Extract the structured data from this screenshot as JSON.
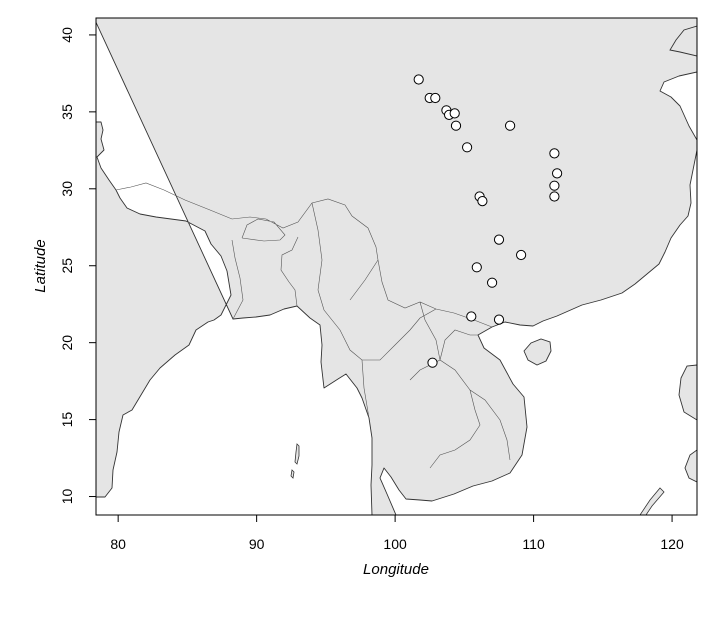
{
  "chart_data": {
    "type": "scatter",
    "map_region": "South China and mainland Southeast Asia",
    "xlabel": "Longitude",
    "ylabel": "Latitude",
    "xlim": [
      78.4,
      121.8
    ],
    "ylim": [
      8.8,
      41.1
    ],
    "x_ticks": [
      80,
      90,
      100,
      110,
      120
    ],
    "y_ticks": [
      10,
      15,
      20,
      25,
      30,
      35,
      40
    ],
    "grid": false,
    "legend": "none",
    "colors": {
      "land": "#e5e5e5",
      "sea": "#ffffff",
      "coastline": "#333333",
      "point_fill": "#ffffff",
      "point_stroke": "#000000",
      "frame": "#000000"
    },
    "points": [
      {
        "lon": 101.7,
        "lat": 37.1
      },
      {
        "lon": 102.5,
        "lat": 35.9
      },
      {
        "lon": 102.9,
        "lat": 35.9
      },
      {
        "lon": 103.7,
        "lat": 35.1
      },
      {
        "lon": 103.9,
        "lat": 34.8
      },
      {
        "lon": 104.3,
        "lat": 34.9
      },
      {
        "lon": 104.4,
        "lat": 34.1
      },
      {
        "lon": 105.2,
        "lat": 32.7
      },
      {
        "lon": 108.3,
        "lat": 34.1
      },
      {
        "lon": 111.5,
        "lat": 32.3
      },
      {
        "lon": 111.7,
        "lat": 31.0
      },
      {
        "lon": 111.5,
        "lat": 30.2
      },
      {
        "lon": 111.5,
        "lat": 29.5
      },
      {
        "lon": 106.1,
        "lat": 29.5
      },
      {
        "lon": 106.3,
        "lat": 29.2
      },
      {
        "lon": 107.5,
        "lat": 26.7
      },
      {
        "lon": 109.1,
        "lat": 25.7
      },
      {
        "lon": 105.9,
        "lat": 24.9
      },
      {
        "lon": 107.0,
        "lat": 23.9
      },
      {
        "lon": 105.5,
        "lat": 21.7
      },
      {
        "lon": 107.5,
        "lat": 21.5
      },
      {
        "lon": 102.7,
        "lat": 18.7
      }
    ]
  }
}
